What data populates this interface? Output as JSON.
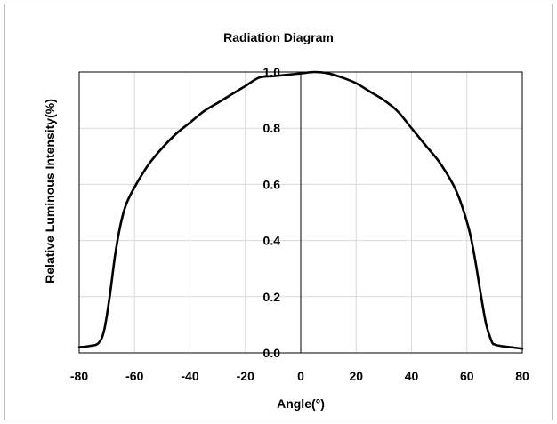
{
  "chart_data": {
    "type": "line",
    "title": "Radiation Diagram",
    "xlabel": "Angle(°)",
    "ylabel": "Relative Luminous Intensity(%)",
    "xlim": [
      -80,
      80
    ],
    "ylim": [
      0,
      1.0
    ],
    "x_ticks": [
      "-80",
      "-60",
      "-40",
      "-20",
      "0",
      "20",
      "40",
      "60",
      "80"
    ],
    "y_ticks": [
      "0.0",
      "0.2",
      "0.4",
      "0.6",
      "0.8",
      "1.0"
    ],
    "grid": true,
    "legend": "none",
    "line_color": "#000000",
    "series": [
      {
        "x": [
          -80,
          -76,
          -73,
          -71,
          -69,
          -67,
          -65,
          -63,
          -60,
          -55,
          -50,
          -45,
          -40,
          -35,
          -30,
          -25,
          -20,
          -15,
          -10,
          -5,
          0,
          5,
          10,
          15,
          20,
          25,
          30,
          35,
          40,
          45,
          50,
          55,
          58,
          61,
          63,
          65,
          67,
          69,
          70,
          72,
          76,
          80
        ],
        "values": [
          0.02,
          0.025,
          0.035,
          0.08,
          0.2,
          0.35,
          0.46,
          0.53,
          0.59,
          0.67,
          0.73,
          0.78,
          0.82,
          0.86,
          0.89,
          0.92,
          0.95,
          0.98,
          0.985,
          0.99,
          0.995,
          1.0,
          0.995,
          0.98,
          0.96,
          0.93,
          0.9,
          0.86,
          0.8,
          0.74,
          0.68,
          0.6,
          0.53,
          0.43,
          0.33,
          0.21,
          0.1,
          0.04,
          0.03,
          0.025,
          0.02,
          0.015
        ]
      }
    ]
  }
}
